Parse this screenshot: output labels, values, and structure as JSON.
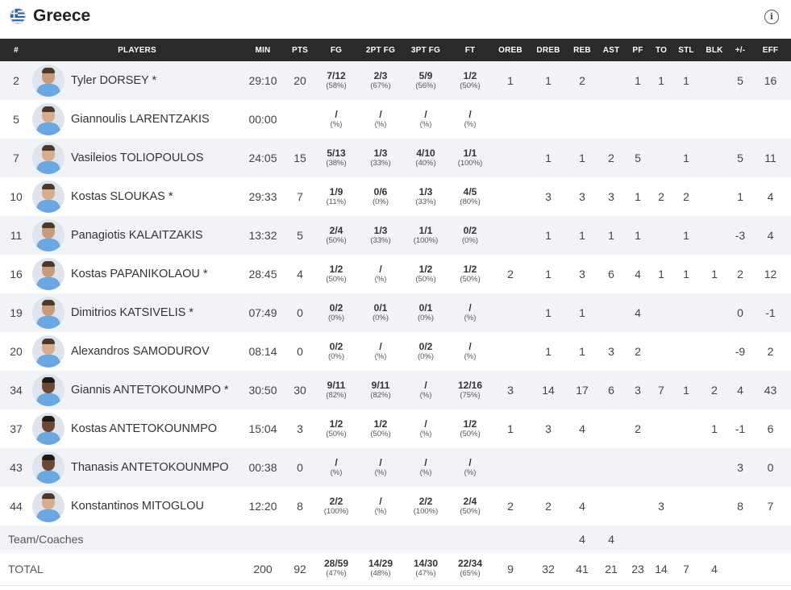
{
  "team": {
    "name": "Greece",
    "info_icon": "i"
  },
  "headers": [
    "#",
    "PLAYERS",
    "MIN",
    "PTS",
    "FG",
    "2PT FG",
    "3PT FG",
    "FT",
    "OREB",
    "DREB",
    "REB",
    "AST",
    "PF",
    "TO",
    "STL",
    "BLK",
    "+/-",
    "EFF"
  ],
  "players": [
    {
      "no": "2",
      "name": "Tyler DORSEY *",
      "min": "29:10",
      "pts": "20",
      "fg": "7/12",
      "fg_pct": "(58%)",
      "fg2": "2/3",
      "fg2_pct": "(67%)",
      "fg3": "5/9",
      "fg3_pct": "(56%)",
      "ft": "1/2",
      "ft_pct": "(50%)",
      "oreb": "1",
      "dreb": "1",
      "reb": "2",
      "ast": "",
      "pf": "1",
      "to": "1",
      "stl": "1",
      "blk": "",
      "pm": "5",
      "eff": "16",
      "avatar": "default"
    },
    {
      "no": "5",
      "name": "Giannoulis LARENTZAKIS",
      "min": "00:00",
      "pts": "",
      "fg": "/",
      "fg_pct": "(%)",
      "fg2": "/",
      "fg2_pct": "(%)",
      "fg3": "/",
      "fg3_pct": "(%)",
      "ft": "/",
      "ft_pct": "(%)",
      "oreb": "",
      "dreb": "",
      "reb": "",
      "ast": "",
      "pf": "",
      "to": "",
      "stl": "",
      "blk": "",
      "pm": "",
      "eff": "",
      "avatar": "light"
    },
    {
      "no": "7",
      "name": "Vasileios TOLIOPOULOS",
      "min": "24:05",
      "pts": "15",
      "fg": "5/13",
      "fg_pct": "(38%)",
      "fg2": "1/3",
      "fg2_pct": "(33%)",
      "fg3": "4/10",
      "fg3_pct": "(40%)",
      "ft": "1/1",
      "ft_pct": "(100%)",
      "oreb": "",
      "dreb": "1",
      "reb": "1",
      "ast": "2",
      "pf": "5",
      "to": "",
      "stl": "1",
      "blk": "",
      "pm": "5",
      "eff": "11",
      "avatar": "light"
    },
    {
      "no": "10",
      "name": "Kostas SLOUKAS *",
      "min": "29:33",
      "pts": "7",
      "fg": "1/9",
      "fg_pct": "(11%)",
      "fg2": "0/6",
      "fg2_pct": "(0%)",
      "fg3": "1/3",
      "fg3_pct": "(33%)",
      "ft": "4/5",
      "ft_pct": "(80%)",
      "oreb": "",
      "dreb": "3",
      "reb": "3",
      "ast": "3",
      "pf": "1",
      "to": "2",
      "stl": "2",
      "blk": "",
      "pm": "1",
      "eff": "4",
      "avatar": "light"
    },
    {
      "no": "11",
      "name": "Panagiotis KALAITZAKIS",
      "min": "13:32",
      "pts": "5",
      "fg": "2/4",
      "fg_pct": "(50%)",
      "fg2": "1/3",
      "fg2_pct": "(33%)",
      "fg3": "1/1",
      "fg3_pct": "(100%)",
      "ft": "0/2",
      "ft_pct": "(0%)",
      "oreb": "",
      "dreb": "1",
      "reb": "1",
      "ast": "1",
      "pf": "1",
      "to": "",
      "stl": "1",
      "blk": "",
      "pm": "-3",
      "eff": "4",
      "avatar": "default"
    },
    {
      "no": "16",
      "name": "Kostas PAPANIKOLAOU *",
      "min": "28:45",
      "pts": "4",
      "fg": "1/2",
      "fg_pct": "(50%)",
      "fg2": "/",
      "fg2_pct": "(%)",
      "fg3": "1/2",
      "fg3_pct": "(50%)",
      "ft": "1/2",
      "ft_pct": "(50%)",
      "oreb": "2",
      "dreb": "1",
      "reb": "3",
      "ast": "6",
      "pf": "4",
      "to": "1",
      "stl": "1",
      "blk": "1",
      "pm": "2",
      "eff": "12",
      "avatar": "default"
    },
    {
      "no": "19",
      "name": "Dimitrios KATSIVELIS *",
      "min": "07:49",
      "pts": "0",
      "fg": "0/2",
      "fg_pct": "(0%)",
      "fg2": "0/1",
      "fg2_pct": "(0%)",
      "fg3": "0/1",
      "fg3_pct": "(0%)",
      "ft": "/",
      "ft_pct": "(%)",
      "oreb": "",
      "dreb": "1",
      "reb": "1",
      "ast": "",
      "pf": "4",
      "to": "",
      "stl": "",
      "blk": "",
      "pm": "0",
      "eff": "-1",
      "avatar": "default"
    },
    {
      "no": "20",
      "name": "Alexandros SAMODUROV",
      "min": "08:14",
      "pts": "0",
      "fg": "0/2",
      "fg_pct": "(0%)",
      "fg2": "/",
      "fg2_pct": "(%)",
      "fg3": "0/2",
      "fg3_pct": "(0%)",
      "ft": "/",
      "ft_pct": "(%)",
      "oreb": "",
      "dreb": "1",
      "reb": "1",
      "ast": "3",
      "pf": "2",
      "to": "",
      "stl": "",
      "blk": "",
      "pm": "-9",
      "eff": "2",
      "avatar": "light"
    },
    {
      "no": "34",
      "name": "Giannis ANTETOKOUNMPO *",
      "min": "30:50",
      "pts": "30",
      "fg": "9/11",
      "fg_pct": "(82%)",
      "fg2": "9/11",
      "fg2_pct": "(82%)",
      "fg3": "/",
      "fg3_pct": "(%)",
      "ft": "12/16",
      "ft_pct": "(75%)",
      "oreb": "3",
      "dreb": "14",
      "reb": "17",
      "ast": "6",
      "pf": "3",
      "to": "7",
      "stl": "1",
      "blk": "2",
      "pm": "4",
      "eff": "43",
      "avatar": "dark"
    },
    {
      "no": "37",
      "name": "Kostas ANTETOKOUNMPO",
      "min": "15:04",
      "pts": "3",
      "fg": "1/2",
      "fg_pct": "(50%)",
      "fg2": "1/2",
      "fg2_pct": "(50%)",
      "fg3": "/",
      "fg3_pct": "(%)",
      "ft": "1/2",
      "ft_pct": "(50%)",
      "oreb": "1",
      "dreb": "3",
      "reb": "4",
      "ast": "",
      "pf": "2",
      "to": "",
      "stl": "",
      "blk": "1",
      "pm": "-1",
      "eff": "6",
      "avatar": "dark"
    },
    {
      "no": "43",
      "name": "Thanasis ANTETOKOUNMPO",
      "min": "00:38",
      "pts": "0",
      "fg": "/",
      "fg_pct": "(%)",
      "fg2": "/",
      "fg2_pct": "(%)",
      "fg3": "/",
      "fg3_pct": "(%)",
      "ft": "/",
      "ft_pct": "(%)",
      "oreb": "",
      "dreb": "",
      "reb": "",
      "ast": "",
      "pf": "",
      "to": "",
      "stl": "",
      "blk": "",
      "pm": "3",
      "eff": "0",
      "avatar": "dark"
    },
    {
      "no": "44",
      "name": "Konstantinos MITOGLOU",
      "min": "12:20",
      "pts": "8",
      "fg": "2/2",
      "fg_pct": "(100%)",
      "fg2": "/",
      "fg2_pct": "(%)",
      "fg3": "2/2",
      "fg3_pct": "(100%)",
      "ft": "2/4",
      "ft_pct": "(50%)",
      "oreb": "2",
      "dreb": "2",
      "reb": "4",
      "ast": "",
      "pf": "",
      "to": "3",
      "stl": "",
      "blk": "",
      "pm": "8",
      "eff": "7",
      "avatar": "light"
    }
  ],
  "team_coaches": {
    "label": "Team/Coaches",
    "dreb": "4",
    "reb": "4"
  },
  "total": {
    "label": "TOTAL",
    "min": "200",
    "pts": "92",
    "fg": "28/59",
    "fg_pct": "(47%)",
    "fg2": "14/29",
    "fg2_pct": "(48%)",
    "fg3": "14/30",
    "fg3_pct": "(47%)",
    "ft": "22/34",
    "ft_pct": "(65%)",
    "oreb": "9",
    "dreb": "32",
    "reb": "41",
    "ast": "21",
    "pf": "23",
    "to": "14",
    "stl": "7",
    "blk": "4",
    "pm": "",
    "eff": ""
  },
  "colors": {
    "header_bg": "#2a2a2a",
    "row_alt": "#f2f3f7",
    "flag_blue": "#2f62b5"
  },
  "icons": {
    "flag": "greece-flag-icon",
    "info": "info-icon"
  }
}
